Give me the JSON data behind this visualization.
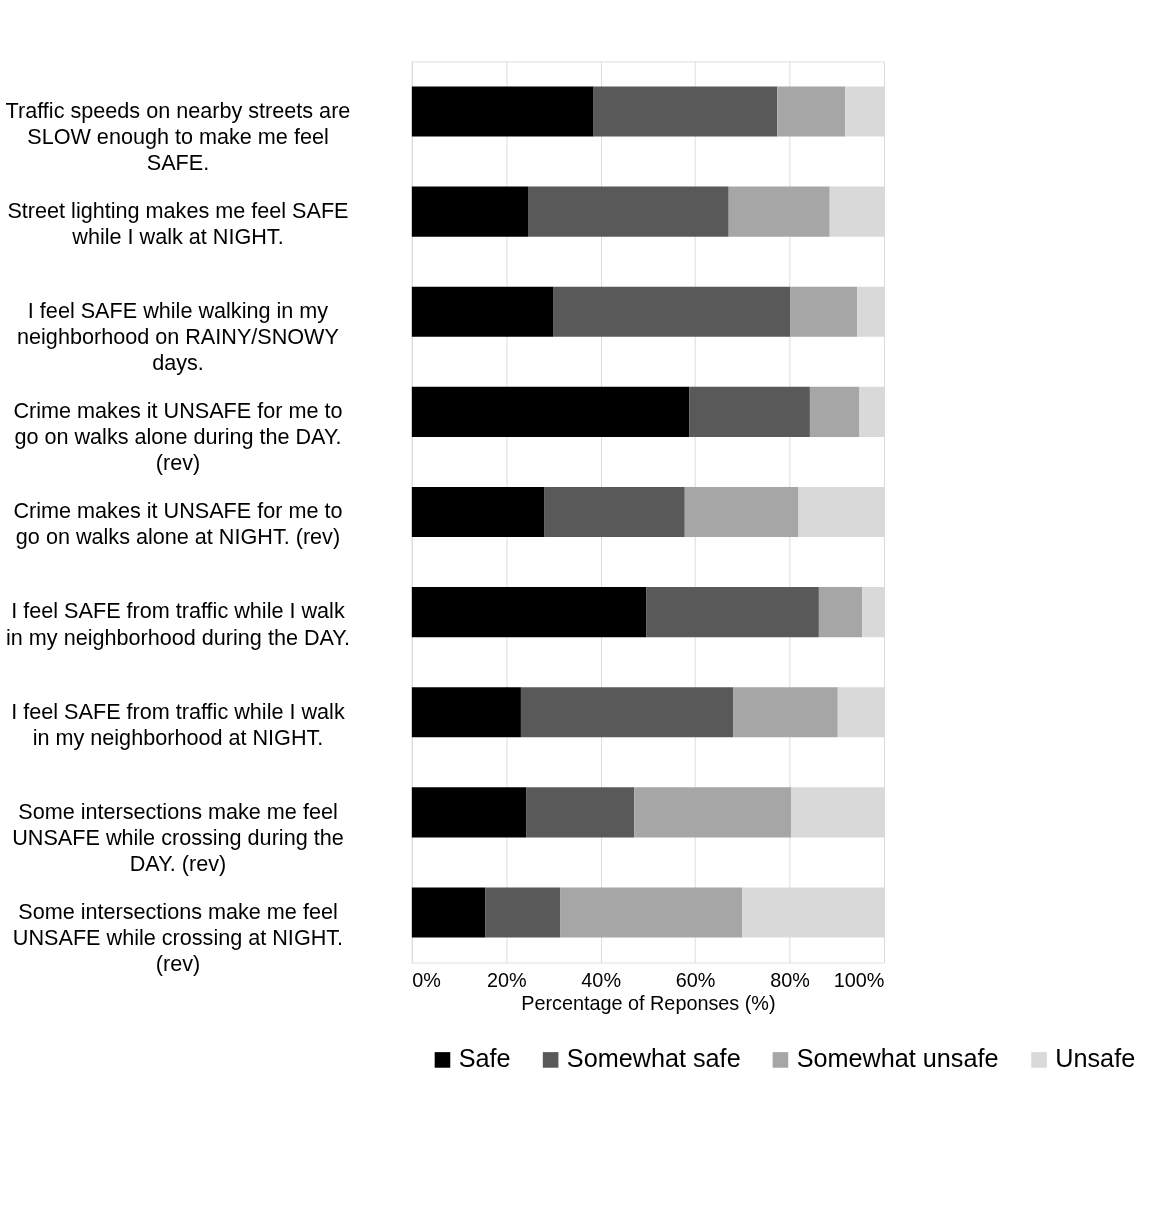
{
  "chart_data": {
    "type": "bar",
    "orientation": "horizontal",
    "stacked": true,
    "categories": [
      "Traffic speeds on nearby streets are\nSLOW enough to make me feel\nSAFE.",
      "Street lighting makes me feel SAFE\nwhile I walk at NIGHT.",
      "I feel SAFE while walking in my\nneighborhood on RAINY/SNOWY\ndays.",
      "Crime makes it UNSAFE for me to\ngo on walks alone during the DAY.\n(rev)",
      "Crime makes it UNSAFE for me to\ngo on walks alone at NIGHT. (rev)",
      "I feel SAFE from traffic while I walk\nin my neighborhood during the DAY.",
      "I feel SAFE from traffic while I walk\nin my neighborhood at NIGHT.",
      "Some intersections make me feel\nUNSAFE while crossing during the\nDAY. (rev)",
      "Some intersections make me feel\nUNSAFE while crossing at NIGHT.\n(rev)"
    ],
    "series": [
      {
        "name": "Safe",
        "color": "#000000",
        "values": [
          38.5,
          24.6,
          29.9,
          58.8,
          28.0,
          49.7,
          23.1,
          24.2,
          15.6
        ]
      },
      {
        "name": "Somewhat safe",
        "color": "#595959",
        "values": [
          38.9,
          42.5,
          50.2,
          25.5,
          29.8,
          36.5,
          45.0,
          22.9,
          15.8
        ]
      },
      {
        "name": "Somewhat unsafe",
        "color": "#a6a6a6",
        "values": [
          14.4,
          21.4,
          14.2,
          10.5,
          24.1,
          9.2,
          22.1,
          33.2,
          38.6
        ]
      },
      {
        "name": "Unsafe",
        "color": "#d9d9d9",
        "values": [
          8.2,
          11.5,
          5.7,
          5.2,
          18.1,
          4.6,
          9.8,
          19.7,
          30.0
        ]
      }
    ],
    "xlabel": "Percentage of Reponses (%)",
    "xlim": [
      0,
      100
    ],
    "xticks": [
      {
        "value": 0,
        "label": "0%"
      },
      {
        "value": 20,
        "label": "20%"
      },
      {
        "value": 40,
        "label": "40%"
      },
      {
        "value": 60,
        "label": "60%"
      },
      {
        "value": 80,
        "label": "80%"
      },
      {
        "value": 100,
        "label": "100%"
      }
    ],
    "grid": "x",
    "legend": "bottom"
  }
}
